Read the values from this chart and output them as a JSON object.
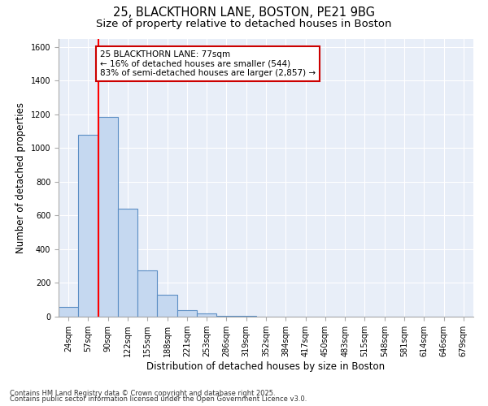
{
  "title1": "25, BLACKTHORN LANE, BOSTON, PE21 9BG",
  "title2": "Size of property relative to detached houses in Boston",
  "xlabel": "Distribution of detached houses by size in Boston",
  "ylabel": "Number of detached properties",
  "bin_labels": [
    "24sqm",
    "57sqm",
    "90sqm",
    "122sqm",
    "155sqm",
    "188sqm",
    "221sqm",
    "253sqm",
    "286sqm",
    "319sqm",
    "352sqm",
    "384sqm",
    "417sqm",
    "450sqm",
    "483sqm",
    "515sqm",
    "548sqm",
    "581sqm",
    "614sqm",
    "646sqm",
    "679sqm"
  ],
  "bin_values": [
    60,
    1080,
    1185,
    640,
    275,
    130,
    40,
    20,
    5,
    3,
    2,
    1,
    1,
    0,
    0,
    0,
    0,
    0,
    0,
    0,
    0
  ],
  "bar_color": "#c5d8f0",
  "bar_edge_color": "#5b8ec4",
  "red_line_x": 1.5,
  "annotation_text": "25 BLACKTHORN LANE: 77sqm\n← 16% of detached houses are smaller (544)\n83% of semi-detached houses are larger (2,857) →",
  "annotation_box_facecolor": "#ffffff",
  "annotation_border_color": "#cc0000",
  "ylim": [
    0,
    1650
  ],
  "yticks": [
    0,
    200,
    400,
    600,
    800,
    1000,
    1200,
    1400,
    1600
  ],
  "footer1": "Contains HM Land Registry data © Crown copyright and database right 2025.",
  "footer2": "Contains public sector information licensed under the Open Government Licence v3.0.",
  "plot_bg_color": "#e8eef8",
  "fig_bg_color": "#ffffff",
  "grid_color": "#ffffff",
  "title1_fontsize": 10.5,
  "title2_fontsize": 9.5,
  "ylabel_fontsize": 8.5,
  "xlabel_fontsize": 8.5,
  "tick_fontsize": 7,
  "footer_fontsize": 6,
  "ann_fontsize": 7.5
}
